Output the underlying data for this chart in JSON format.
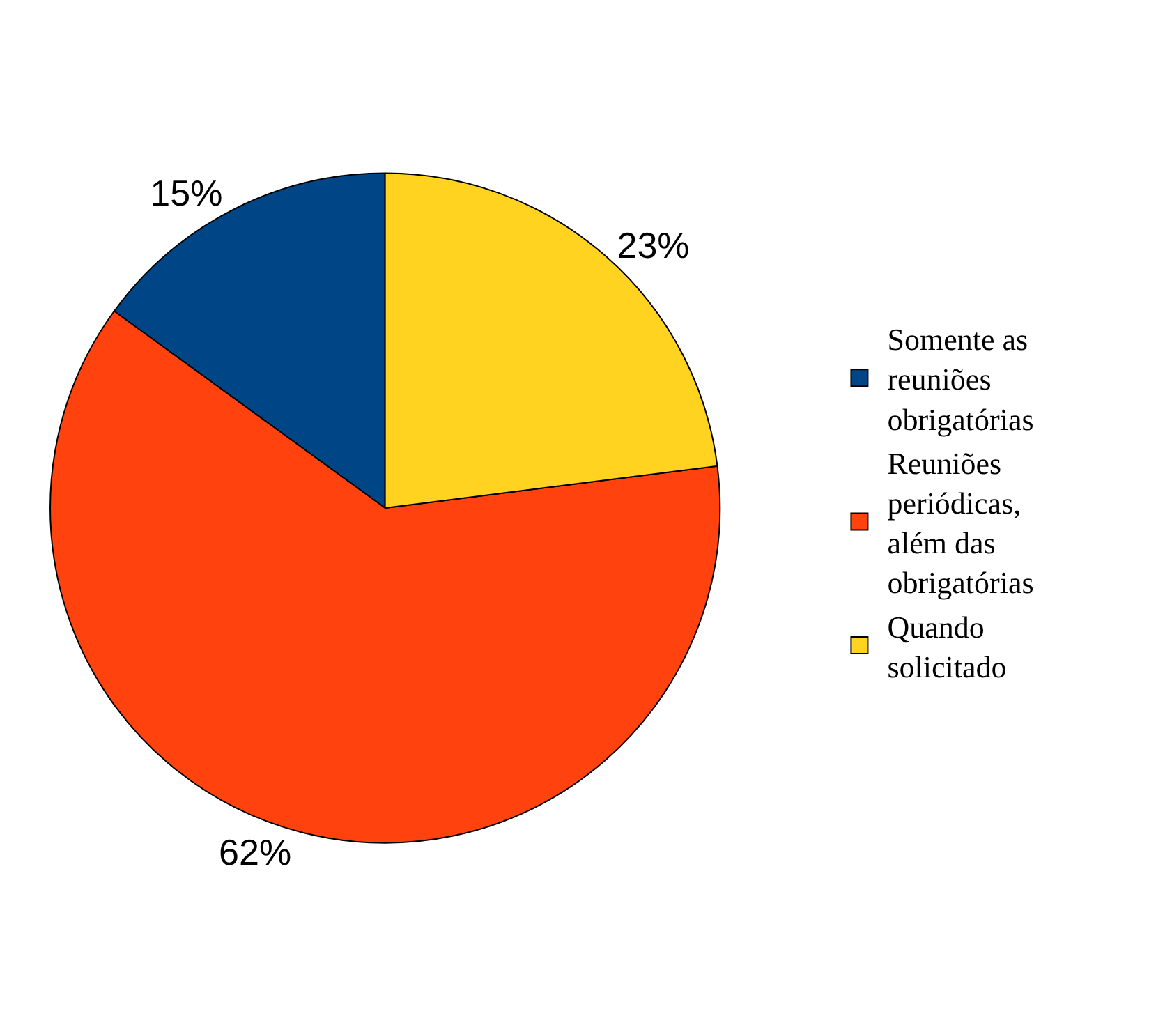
{
  "chart_data": {
    "type": "pie",
    "categories": [
      "Somente as reuniões obrigatórias",
      "Reuniões periódicas, além das obrigatórias",
      "Quando solicitado"
    ],
    "values": [
      15,
      62,
      23
    ],
    "colors": [
      "#004586",
      "#ff420e",
      "#ffd320"
    ],
    "value_labels": [
      "15%",
      "62%",
      "23%"
    ],
    "legend": "right"
  }
}
